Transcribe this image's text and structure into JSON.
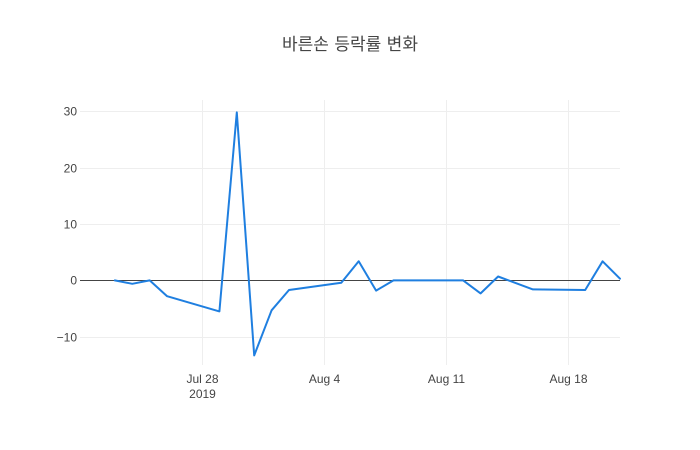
{
  "chart_data": {
    "type": "line",
    "title": "바른손 등락률 변화",
    "xlabel": "",
    "ylabel": "",
    "x_range": [
      "2019-07-21",
      "2019-08-21"
    ],
    "ylim": [
      -15,
      32
    ],
    "y_ticks": [
      {
        "value": 30,
        "label": "30"
      },
      {
        "value": 20,
        "label": "20"
      },
      {
        "value": 10,
        "label": "10"
      },
      {
        "value": 0,
        "label": "0"
      },
      {
        "value": -10,
        "label": "−10"
      }
    ],
    "x_ticks": [
      {
        "date": "2019-07-28",
        "label": "Jul 28",
        "sublabel": "2019"
      },
      {
        "date": "2019-08-04",
        "label": "Aug 4",
        "sublabel": ""
      },
      {
        "date": "2019-08-11",
        "label": "Aug 11",
        "sublabel": ""
      },
      {
        "date": "2019-08-18",
        "label": "Aug 18",
        "sublabel": ""
      }
    ],
    "grid": true,
    "zero_line": true,
    "legend": "none",
    "series": [
      {
        "color": "#1f7fe0",
        "points": [
          {
            "x": "2019-07-23",
            "y": 0.0
          },
          {
            "x": "2019-07-24",
            "y": -0.6
          },
          {
            "x": "2019-07-25",
            "y": 0.0
          },
          {
            "x": "2019-07-26",
            "y": -2.8
          },
          {
            "x": "2019-07-29",
            "y": -5.5
          },
          {
            "x": "2019-07-30",
            "y": 29.8
          },
          {
            "x": "2019-07-31",
            "y": -13.3
          },
          {
            "x": "2019-08-01",
            "y": -5.3
          },
          {
            "x": "2019-08-02",
            "y": -1.7
          },
          {
            "x": "2019-08-05",
            "y": -0.4
          },
          {
            "x": "2019-08-06",
            "y": 3.4
          },
          {
            "x": "2019-08-07",
            "y": -1.8
          },
          {
            "x": "2019-08-08",
            "y": 0.0
          },
          {
            "x": "2019-08-12",
            "y": 0.0
          },
          {
            "x": "2019-08-13",
            "y": -2.3
          },
          {
            "x": "2019-08-14",
            "y": 0.7
          },
          {
            "x": "2019-08-16",
            "y": -1.6
          },
          {
            "x": "2019-08-19",
            "y": -1.7
          },
          {
            "x": "2019-08-20",
            "y": 3.4
          },
          {
            "x": "2019-08-21",
            "y": 0.3
          }
        ]
      }
    ]
  }
}
